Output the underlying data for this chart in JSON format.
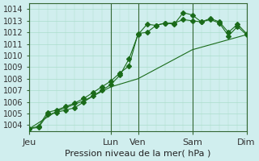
{
  "title": "Pression niveau de la mer( hPa )",
  "bg_color": "#d0eeee",
  "grid_color": "#aaddcc",
  "line_color": "#1a6b1a",
  "ylim": [
    1003.5,
    1014.5
  ],
  "yticks": [
    1004,
    1005,
    1006,
    1007,
    1008,
    1009,
    1010,
    1011,
    1012,
    1013,
    1014
  ],
  "day_labels": [
    "Jeu",
    "Lun",
    "Ven",
    "Sam",
    "Dim"
  ],
  "day_positions": [
    0,
    9,
    12,
    18,
    24
  ],
  "vline_positions": [
    0,
    9,
    12,
    18,
    24
  ],
  "series1_x": [
    0,
    1,
    2,
    3,
    4,
    5,
    6,
    7,
    8,
    9,
    10,
    11,
    12,
    13,
    14,
    15,
    16,
    17,
    18,
    19,
    20,
    21,
    22,
    23,
    24
  ],
  "series1_y": [
    1003.7,
    1003.8,
    1004.9,
    1005.1,
    1005.3,
    1005.5,
    1006.0,
    1006.5,
    1007.0,
    1007.5,
    1008.3,
    1009.7,
    1011.8,
    1012.7,
    1012.6,
    1012.8,
    1012.7,
    1013.7,
    1013.5,
    1012.9,
    1013.1,
    1012.8,
    1011.7,
    1012.5,
    1011.8
  ],
  "series2_x": [
    0,
    1,
    2,
    3,
    4,
    5,
    6,
    7,
    8,
    9,
    10,
    11,
    12,
    13,
    14,
    15,
    16,
    17,
    18,
    19,
    20,
    21,
    22,
    23,
    24
  ],
  "series2_y": [
    1003.7,
    1003.9,
    1005.1,
    1005.3,
    1005.6,
    1005.9,
    1006.3,
    1006.8,
    1007.3,
    1007.8,
    1008.5,
    1009.1,
    1011.9,
    1012.0,
    1012.6,
    1012.8,
    1012.8,
    1013.1,
    1013.0,
    1012.9,
    1013.2,
    1012.9,
    1012.0,
    1012.7,
    1011.9
  ],
  "series3_x": [
    0,
    3,
    6,
    9,
    12,
    18,
    24
  ],
  "series3_y": [
    1003.7,
    1005.2,
    1006.1,
    1007.3,
    1008.0,
    1010.5,
    1011.8
  ],
  "xlabel_fontsize": 8,
  "ylabel_fontsize": 7,
  "tick_fontsize": 7
}
